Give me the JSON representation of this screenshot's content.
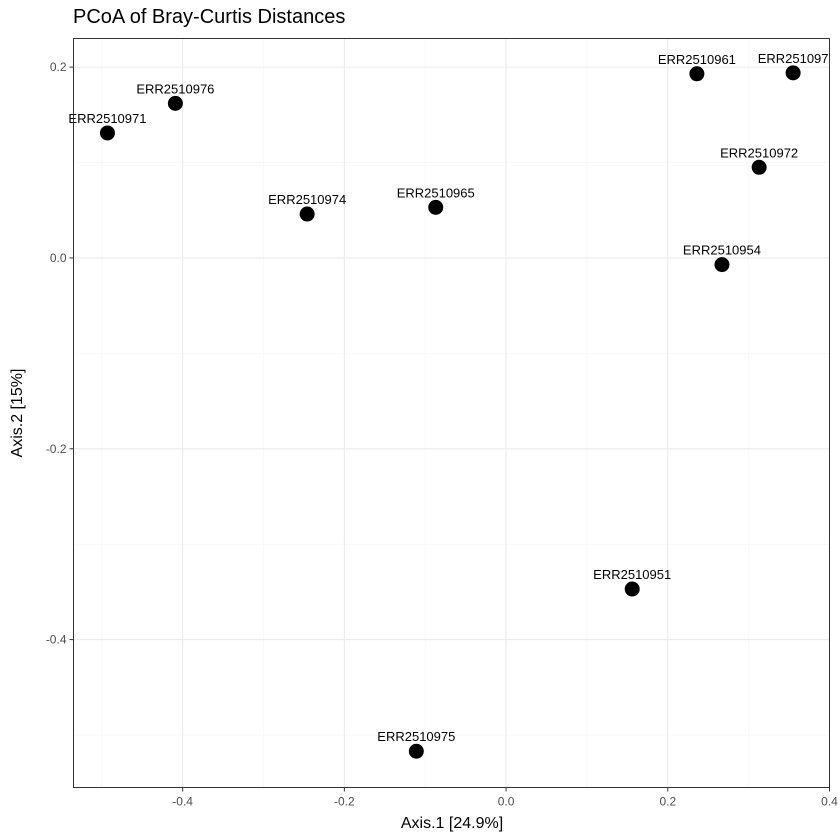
{
  "chart_data": {
    "type": "scatter",
    "title": "PCoA of Bray-Curtis Distances",
    "xlabel": "Axis.1   [24.9%]",
    "ylabel": "Axis.2   [15%]",
    "xlim": [
      -0.535,
      0.4
    ],
    "ylim": [
      -0.555,
      0.23
    ],
    "x_ticks": [
      -0.4,
      -0.2,
      0.0,
      0.2,
      0.4
    ],
    "x_tick_labels": [
      "-0.4",
      "-0.2",
      "0.0",
      "0.2",
      "0.4"
    ],
    "y_ticks": [
      -0.4,
      -0.2,
      0.0,
      0.2
    ],
    "y_tick_labels": [
      "-0.4",
      "-0.2",
      "0.0",
      "0.2"
    ],
    "grid": true,
    "points": [
      {
        "label": "ERR2510971",
        "x": -0.493,
        "y": 0.131
      },
      {
        "label": "ERR2510976",
        "x": -0.409,
        "y": 0.162
      },
      {
        "label": "ERR2510974",
        "x": -0.246,
        "y": 0.046
      },
      {
        "label": "ERR2510965",
        "x": -0.087,
        "y": 0.053
      },
      {
        "label": "ERR2510961",
        "x": 0.236,
        "y": 0.193
      },
      {
        "label": "ERR251097",
        "x": 0.355,
        "y": 0.194
      },
      {
        "label": "ERR2510972",
        "x": 0.313,
        "y": 0.095
      },
      {
        "label": "ERR2510954",
        "x": 0.267,
        "y": -0.007
      },
      {
        "label": "ERR2510951",
        "x": 0.156,
        "y": -0.347
      },
      {
        "label": "ERR2510975",
        "x": -0.111,
        "y": -0.517
      }
    ],
    "marker_color": "#000000"
  }
}
